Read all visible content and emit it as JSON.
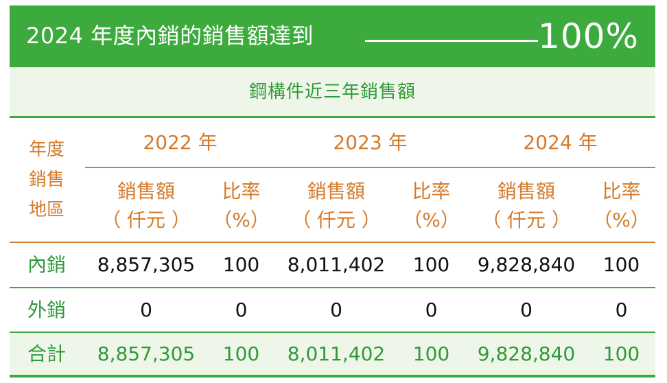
{
  "header": {
    "title": "2024 年度內銷的銷售額達到",
    "percent": "100%"
  },
  "subtitle": "鋼構件近三年銷售額",
  "table": {
    "region_header": [
      "年度",
      "銷售",
      "地區"
    ],
    "years": [
      "2022 年",
      "2023 年",
      "2024 年"
    ],
    "col_sales": [
      "銷售額",
      "（ 仟元 ）"
    ],
    "col_ratio": [
      "比率",
      "（%）"
    ],
    "rows": [
      {
        "label": "內銷",
        "values": [
          "8,857,305",
          "100",
          "8,011,402",
          "100",
          "9,828,840",
          "100"
        ]
      },
      {
        "label": "外銷",
        "values": [
          "0",
          "0",
          "0",
          "0",
          "0",
          "0"
        ]
      },
      {
        "label": "合計",
        "values": [
          "8,857,305",
          "100",
          "8,011,402",
          "100",
          "9,828,840",
          "100"
        ]
      }
    ]
  },
  "colors": {
    "green": "#3caa3c",
    "green_text": "#2f9a37",
    "orange": "#d57a2a",
    "light_green": "#eef6e9"
  }
}
